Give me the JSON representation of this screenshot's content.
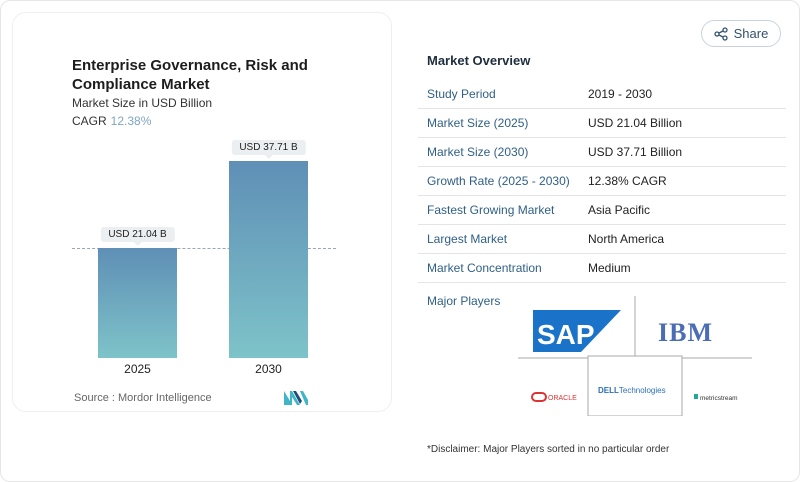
{
  "share_label": "Share",
  "chart_data": {
    "type": "bar",
    "title": "Enterprise Governance, Risk and Compliance Market",
    "subtitle": "Market Size in USD Billion",
    "cagr_label": "CAGR",
    "cagr_value": "12.38%",
    "categories": [
      "2025",
      "2030"
    ],
    "values": [
      21.04,
      37.71
    ],
    "data_labels": [
      "USD 21.04 B",
      "USD 37.71 B"
    ],
    "ylim": [
      0,
      37.71
    ],
    "reference_line": 21.04,
    "source": "Source :  Mordor Intelligence",
    "bar_colors": [
      "#5f8fb6",
      "#7ec3c9"
    ]
  },
  "overview": {
    "title": "Market Overview",
    "rows": [
      {
        "k": "Study Period",
        "v": "2019 - 2030"
      },
      {
        "k": "Market Size (2025)",
        "v": "USD 21.04 Billion"
      },
      {
        "k": "Market Size (2030)",
        "v": "USD 37.71 Billion"
      },
      {
        "k": "Growth Rate (2025 - 2030)",
        "v": "12.38% CAGR"
      },
      {
        "k": "Fastest Growing Market",
        "v": "Asia Pacific"
      },
      {
        "k": "Largest Market",
        "v": "North America"
      },
      {
        "k": "Market Concentration",
        "v": "Medium"
      }
    ],
    "major_players_label": "Major Players",
    "players": [
      "SAP",
      "IBM",
      "ORACLE",
      "DELL Technologies",
      "metricstream"
    ],
    "disclaimer": "*Disclaimer: Major Players sorted in no particular order"
  }
}
